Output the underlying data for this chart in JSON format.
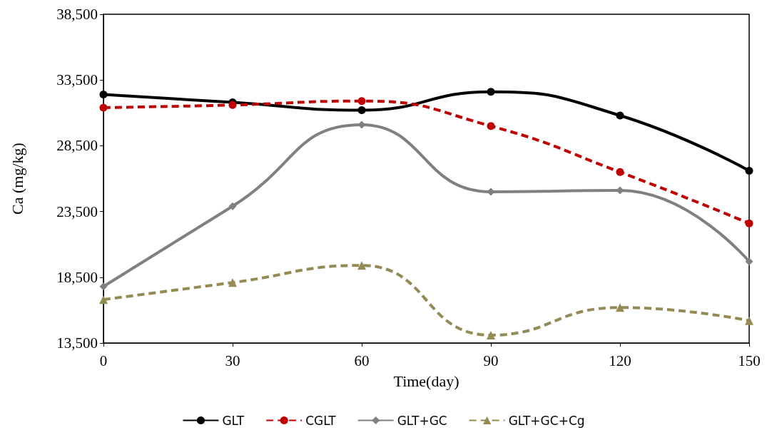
{
  "chart_data": {
    "type": "line",
    "xlabel": "Time(day)",
    "ylabel": "Ca (mg/kg)",
    "x": [
      0,
      30,
      60,
      90,
      120,
      150
    ],
    "series": [
      {
        "name": "GLT",
        "color": "#000000",
        "marker": "circle",
        "line_style": "solid",
        "values": [
          32400,
          31800,
          31200,
          32600,
          30800,
          26600
        ]
      },
      {
        "name": "CGLT",
        "color": "#c00000",
        "marker": "circle",
        "line_style": "dashed",
        "values": [
          31400,
          31600,
          31900,
          30000,
          26500,
          22600
        ]
      },
      {
        "name": "GLT+GC",
        "color": "#808080",
        "marker": "diamond",
        "line_style": "solid",
        "values": [
          17800,
          23900,
          30100,
          25000,
          25100,
          19700
        ]
      },
      {
        "name": "GLT+GC+Cg",
        "color": "#948a54",
        "marker": "triangle",
        "line_style": "dashed",
        "values": [
          16800,
          18100,
          19400,
          14100,
          16200,
          15200
        ]
      }
    ],
    "xlim": [
      0,
      150
    ],
    "xticks": [
      0,
      30,
      60,
      90,
      120,
      150
    ],
    "ylim": [
      13500,
      38500
    ],
    "yticks": [
      {
        "value": 13500,
        "label": "13,500"
      },
      {
        "value": 18500,
        "label": "18,500"
      },
      {
        "value": 23500,
        "label": "23,500"
      },
      {
        "value": 28500,
        "label": "28,500"
      },
      {
        "value": 33500,
        "label": "33,500"
      },
      {
        "value": 38500,
        "label": "38,500"
      }
    ],
    "grid": false,
    "legend": "bottom"
  }
}
